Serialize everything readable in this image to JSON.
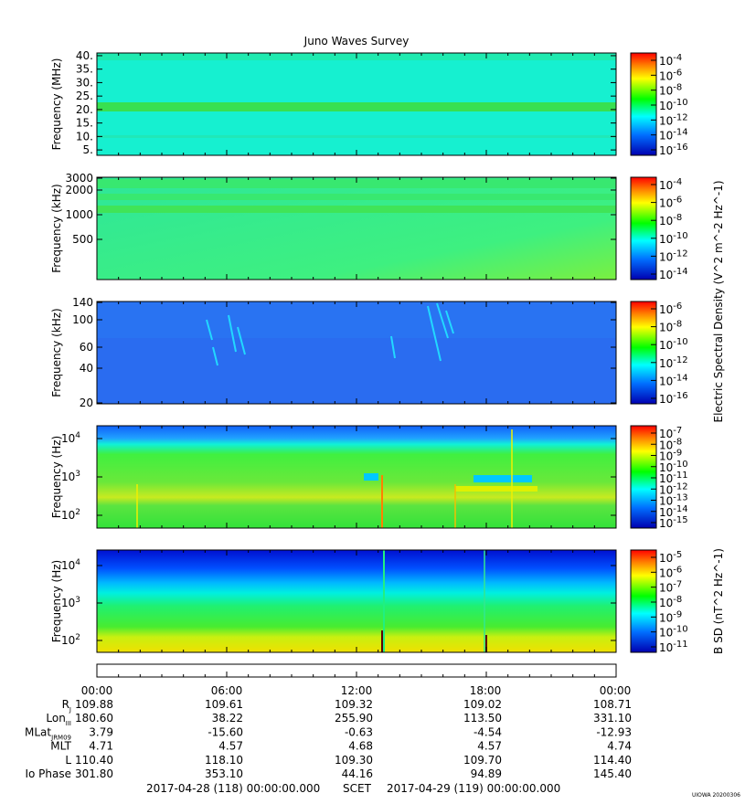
{
  "title": "Juno Waves Survey",
  "footer_stamp": "UIOWA 20200306",
  "colors": {
    "bg_mhz": "#13f0c8",
    "bg_khz_top": "#2fe38f",
    "bg_khz_bottom": "#55f070",
    "bg_lowkhz": "#2a6cf0",
    "blue_deep": "#0000c8",
    "green": "#33e23a",
    "yellow": "#e6f000",
    "orange": "#ff8c00"
  },
  "chart_data": [
    {
      "type": "heatmap",
      "name": "panel-1-mhz",
      "ylabel": "Frequency (MHz)",
      "yticks": [
        "40.",
        "35.",
        "30.",
        "25.",
        "20.",
        "15.",
        "10.",
        "5."
      ],
      "ytick_values": [
        40,
        35,
        30,
        25,
        20,
        15,
        10,
        5
      ],
      "ylim": [
        3,
        41
      ],
      "colorbar": {
        "labels": [
          "10^-4",
          "10^-6",
          "10^-8",
          "10^-10",
          "10^-12",
          "10^-14",
          "10^-16"
        ],
        "exponents": [
          -4,
          -6,
          -8,
          -10,
          -12,
          -14,
          -16
        ],
        "label": ""
      }
    },
    {
      "type": "heatmap",
      "name": "panel-2-khz",
      "ylabel": "Frequency (kHz)",
      "yticks": [
        "3000",
        "2000",
        "1000",
        "500"
      ],
      "ytick_values": [
        3000,
        2000,
        1000,
        500
      ],
      "log": true,
      "colorbar": {
        "labels": [
          "10^-4",
          "10^-6",
          "10^-8",
          "10^-10",
          "10^-12",
          "10^-14"
        ],
        "exponents": [
          -4,
          -6,
          -8,
          -10,
          -12,
          -14
        ],
        "label": "Electric Spectral Density (V^2 m^-2 Hz^-1)"
      }
    },
    {
      "type": "heatmap",
      "name": "panel-3-khz",
      "ylabel": "Frequency (kHz)",
      "yticks": [
        "140",
        "100",
        "60",
        "40",
        "20"
      ],
      "ytick_values": [
        140,
        100,
        60,
        40,
        20
      ],
      "log": true,
      "colorbar": {
        "labels": [
          "10^-6",
          "10^-8",
          "10^-10",
          "10^-12",
          "10^-14",
          "10^-16"
        ],
        "exponents": [
          -6,
          -8,
          -10,
          -12,
          -14,
          -16
        ],
        "label": ""
      }
    },
    {
      "type": "heatmap",
      "name": "panel-4-hz",
      "ylabel": "Frequency (Hz)",
      "yticks": [
        "10^4",
        "10^3",
        "10^2"
      ],
      "ytick_values": [
        10000,
        1000,
        100
      ],
      "log": true,
      "colorbar": {
        "labels": [
          "10^-7",
          "10^-8",
          "10^-9",
          "10^-10",
          "10^-11",
          "10^-12",
          "10^-13",
          "10^-14",
          "10^-15"
        ],
        "exponents": [
          -7,
          -8,
          -9,
          -10,
          -11,
          -12,
          -13,
          -14,
          -15
        ],
        "label": ""
      }
    },
    {
      "type": "heatmap",
      "name": "panel-5-hz",
      "ylabel": "Frequency (Hz)",
      "yticks": [
        "10^4",
        "10^3",
        "10^2"
      ],
      "ytick_values": [
        10000,
        1000,
        100
      ],
      "log": true,
      "colorbar": {
        "labels": [
          "10^-5",
          "10^-6",
          "10^-7",
          "10^-8",
          "10^-9",
          "10^-10",
          "10^-11"
        ],
        "exponents": [
          -5,
          -6,
          -7,
          -8,
          -9,
          -10,
          -11
        ],
        "label": "B SD (nT^2 Hz^-1)"
      }
    }
  ],
  "time_axis": {
    "ticks": [
      "00:00",
      "06:00",
      "12:00",
      "18:00",
      "00:00"
    ],
    "rows": [
      {
        "label": "R",
        "sub": "J",
        "values": [
          "109.88",
          "109.61",
          "109.32",
          "109.02",
          "108.71"
        ]
      },
      {
        "label": "Lon",
        "sub": "III",
        "values": [
          "180.60",
          "38.22",
          "255.90",
          "113.50",
          "331.10"
        ]
      },
      {
        "label": "MLat",
        "sub": "JRM09",
        "values": [
          "3.79",
          "-15.60",
          "-0.63",
          "-4.54",
          "-12.93"
        ]
      },
      {
        "label": "MLT",
        "sub": "",
        "values": [
          "4.71",
          "4.57",
          "4.68",
          "4.57",
          "4.74"
        ]
      },
      {
        "label": "L",
        "sub": "",
        "values": [
          "110.40",
          "118.10",
          "109.30",
          "109.70",
          "114.40"
        ]
      },
      {
        "label": "Io Phase",
        "sub": "",
        "values": [
          "301.80",
          "353.10",
          "44.16",
          "94.89",
          "145.40"
        ]
      }
    ],
    "start": "2017-04-28 (118) 00:00:00.000",
    "scet": "SCET",
    "end": "2017-04-29 (119) 00:00:00.000"
  }
}
